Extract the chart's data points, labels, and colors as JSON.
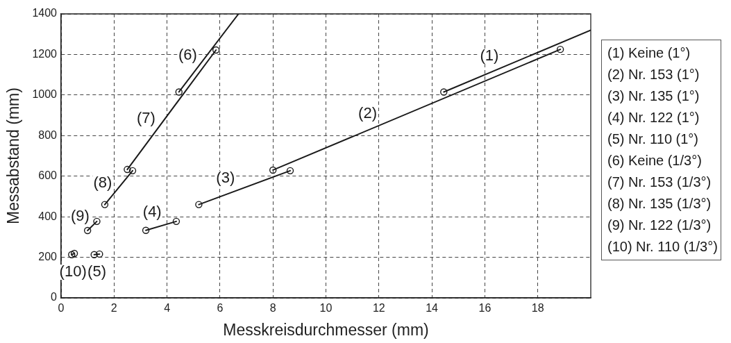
{
  "chart_data": {
    "type": "line",
    "xlabel": "Messkreisdurchmesser (mm)",
    "ylabel": "Messabstand (mm)",
    "xlim": [
      0,
      20
    ],
    "xticks": [
      0,
      2,
      4,
      6,
      8,
      10,
      12,
      14,
      16,
      18
    ],
    "ylim": [
      0,
      1400
    ],
    "yticks": [
      0,
      200,
      400,
      600,
      800,
      1000,
      1200,
      1400
    ],
    "grid": true,
    "marker": "circle",
    "series": [
      {
        "name": "(1)",
        "color": "#1a1a1a",
        "marker": "none",
        "x": [
          14.45,
          20
        ],
        "values": [
          1015,
          1320
        ]
      },
      {
        "name": "(2)",
        "color": "#1a1a1a",
        "marker": "none",
        "x": [
          8.0,
          18.85
        ],
        "values": [
          630,
          1225
        ]
      },
      {
        "name": "(3)",
        "color": "#1a1a1a",
        "marker": "none",
        "x": [
          5.2,
          8.65
        ],
        "values": [
          460,
          627
        ]
      },
      {
        "name": "(4)",
        "color": "#1a1a1a",
        "marker": "none",
        "x": [
          3.2,
          4.35
        ],
        "values": [
          333,
          377
        ]
      },
      {
        "name": "(5)",
        "color": "#1a1a1a",
        "marker": "none",
        "x": [
          1.25,
          1.45
        ],
        "values": [
          213,
          216
        ]
      },
      {
        "name": "(6)",
        "color": "#1a1a1a",
        "marker": "none",
        "x": [
          4.45,
          6.7
        ],
        "values": [
          1015,
          1400
        ]
      },
      {
        "name": "(7)",
        "color": "#1a1a1a",
        "marker": "none",
        "x": [
          2.5,
          5.85
        ],
        "values": [
          633,
          1222
        ]
      },
      {
        "name": "(8)",
        "color": "#1a1a1a",
        "marker": "none",
        "x": [
          1.65,
          2.7
        ],
        "values": [
          460,
          627
        ]
      },
      {
        "name": "(9)",
        "color": "#1a1a1a",
        "marker": "none",
        "x": [
          1.0,
          1.35
        ],
        "values": [
          332,
          377
        ]
      },
      {
        "name": "(10)",
        "color": "#1a1a1a",
        "marker": "none",
        "x": [
          0.4,
          0.5
        ],
        "values": [
          213,
          219
        ]
      },
      {
        "type": "scatter",
        "color": "#1a1a1a",
        "x": [
          14.45,
          8.0,
          18.85,
          5.2,
          8.65,
          3.2,
          4.35,
          1.25,
          1.45,
          4.45,
          2.5,
          5.85,
          1.65,
          2.7,
          1.0,
          1.35,
          0.4,
          0.5
        ],
        "values": [
          1015,
          630,
          1225,
          460,
          627,
          333,
          377,
          213,
          216,
          1015,
          633,
          1222,
          460,
          627,
          332,
          377,
          213,
          219
        ]
      }
    ],
    "annotations": [
      "(1) Keine (1°)",
      "(2) Nr. 153 (1°)",
      "(3) Nr. 135 (1°)",
      "(4) Nr. 122 (1°)",
      "(5) Nr. 110 (1°)",
      "(6) Keine (1/3°)",
      "(7) Nr. 153 (1/3°)",
      "(8) Nr. 135 (1/3°)",
      "(9) Nr. 122 (1/3°)",
      "(10) Nr. 110 (1/3°)"
    ]
  }
}
